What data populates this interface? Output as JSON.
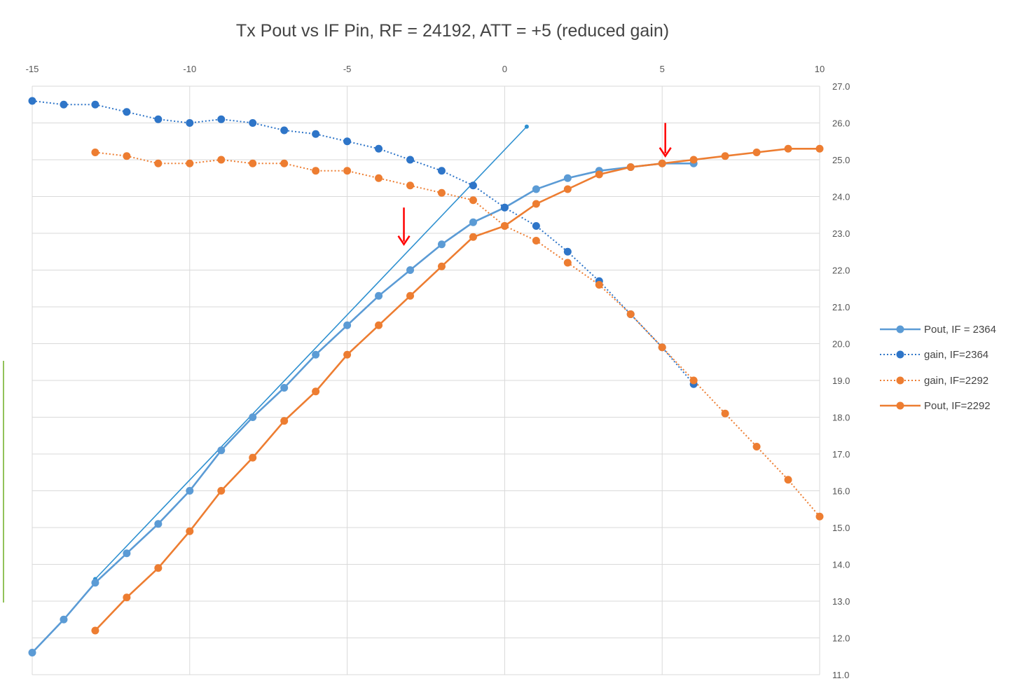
{
  "chart_data": {
    "type": "line",
    "title": "Tx Pout vs IF Pin, RF = 24192, ATT = +5 (reduced gain)",
    "xlabel": "",
    "ylabel": "",
    "xlim": [
      -15,
      10
    ],
    "ylim": [
      11.0,
      27.0
    ],
    "x_ticks": [
      "-15",
      "-10",
      "-5",
      "0",
      "5",
      "10"
    ],
    "x_tick_values": [
      -15,
      -10,
      -5,
      0,
      5,
      10
    ],
    "y_ticks": [
      "27.0",
      "26.0",
      "25.0",
      "24.0",
      "23.0",
      "22.0",
      "21.0",
      "20.0",
      "19.0",
      "18.0",
      "17.0",
      "16.0",
      "15.0",
      "14.0",
      "13.0",
      "12.0",
      "11.0"
    ],
    "y_tick_values": [
      27,
      26,
      25,
      24,
      23,
      22,
      21,
      20,
      19,
      18,
      17,
      16,
      15,
      14,
      13,
      12,
      11
    ],
    "x_axis_position": "top",
    "y_axis_position": "right",
    "grid": true,
    "legend_position": "right",
    "series": [
      {
        "name": "Pout, IF = 2364",
        "color": "#5b9bd5",
        "style": "solid",
        "x": [
          -15,
          -14,
          -13,
          -12,
          -11,
          -10,
          -9,
          -8,
          -7,
          -6,
          -5,
          -4,
          -3,
          -2,
          -1,
          0,
          1,
          2,
          3,
          4,
          5,
          6
        ],
        "y": [
          11.6,
          12.5,
          13.5,
          14.3,
          15.1,
          16.0,
          17.1,
          18.0,
          18.8,
          19.7,
          20.5,
          21.3,
          22.0,
          22.7,
          23.3,
          23.7,
          24.2,
          24.5,
          24.7,
          24.8,
          24.9,
          24.9
        ]
      },
      {
        "name": "gain, IF=2364",
        "color": "#2e75c8",
        "style": "dotted",
        "x": [
          -15,
          -14,
          -13,
          -12,
          -11,
          -10,
          -9,
          -8,
          -7,
          -6,
          -5,
          -4,
          -3,
          -2,
          -1,
          0,
          1,
          2,
          3,
          4,
          5,
          6
        ],
        "y": [
          26.6,
          26.5,
          26.5,
          26.3,
          26.1,
          26.0,
          26.1,
          26.0,
          25.8,
          25.7,
          25.5,
          25.3,
          25.0,
          24.7,
          24.3,
          23.7,
          23.2,
          22.5,
          21.7,
          20.8,
          19.9,
          18.9
        ]
      },
      {
        "name": "gain, IF=2292",
        "color": "#ed7d31",
        "style": "dotted",
        "x": [
          -13,
          -12,
          -11,
          -10,
          -9,
          -8,
          -7,
          -6,
          -5,
          -4,
          -3,
          -2,
          -1,
          0,
          1,
          2,
          3,
          4,
          5,
          6,
          7,
          8,
          9,
          10
        ],
        "y": [
          25.2,
          25.1,
          24.9,
          24.9,
          25.0,
          24.9,
          24.9,
          24.7,
          24.7,
          24.5,
          24.3,
          24.1,
          23.9,
          23.2,
          22.8,
          22.2,
          21.6,
          20.8,
          19.9,
          19.0,
          18.1,
          17.2,
          16.3,
          15.3
        ]
      },
      {
        "name": "Pout, IF=2292",
        "color": "#ed7d31",
        "style": "solid",
        "x": [
          -13,
          -12,
          -11,
          -10,
          -9,
          -8,
          -7,
          -6,
          -5,
          -4,
          -3,
          -2,
          -1,
          0,
          1,
          2,
          3,
          4,
          5,
          6,
          7,
          8,
          9,
          10
        ],
        "y": [
          12.2,
          13.1,
          13.9,
          14.9,
          16.0,
          16.9,
          17.9,
          18.7,
          19.7,
          20.5,
          21.3,
          22.1,
          22.9,
          23.2,
          23.8,
          24.2,
          24.6,
          24.8,
          24.9,
          25.0,
          25.1,
          25.2,
          25.3,
          25.3
        ]
      }
    ],
    "annotations": [
      {
        "type": "reference-line",
        "color": "#2e90d0",
        "x": [
          -13,
          0.7
        ],
        "y": [
          13.6,
          25.9
        ]
      },
      {
        "type": "arrow",
        "color": "#ff0000",
        "direction": "down",
        "x": -3.2,
        "y_from": 23.7,
        "y_to": 22.7
      },
      {
        "type": "arrow",
        "color": "#ff0000",
        "direction": "down",
        "x": 5.1,
        "y_from": 26.0,
        "y_to": 25.1
      }
    ]
  }
}
